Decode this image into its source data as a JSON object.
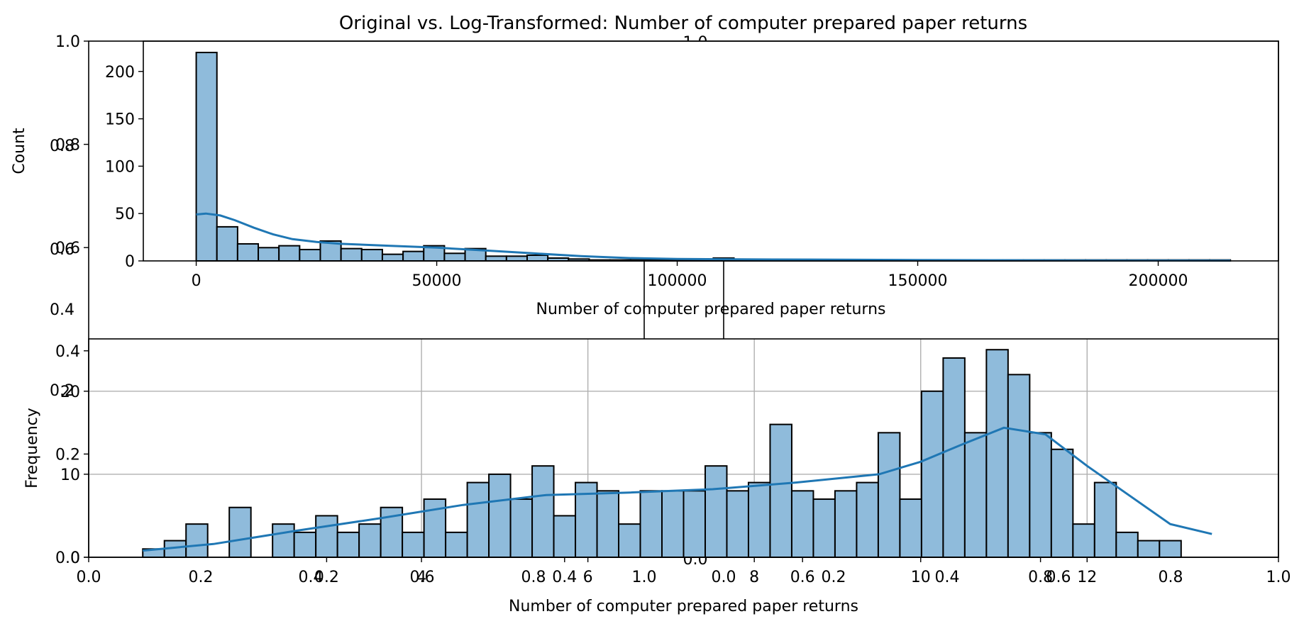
{
  "title": "Original vs. Log-Transformed: Number of computer prepared paper returns",
  "colors": {
    "bar_fill": "#8fbbdb",
    "bar_edge": "#000000",
    "kde": "#1f77b4",
    "grid": "#b0b0b0"
  },
  "ghost_axis": {
    "x_ticks": [
      "0.0",
      "0.2",
      "0.4",
      "0.6",
      "0.8",
      "1.0"
    ],
    "y_ticks": [
      "0.0",
      "0.2",
      "0.4",
      "0.6",
      "0.8",
      "1.0"
    ],
    "x_ticks_inner": [
      "0.0",
      "0.2",
      "0.4",
      "0.6",
      "0.8",
      "1.0"
    ],
    "y_ticks_inner": [
      "0.0",
      "0.2",
      "0.4",
      "0.6",
      "0.8",
      "1.0"
    ]
  },
  "chart_data": [
    {
      "type": "bar",
      "xlabel": "Number of computer prepared paper returns",
      "ylabel": "Count",
      "xlim": [
        -11000,
        225000
      ],
      "ylim": [
        0,
        232
      ],
      "x_ticks": [
        0,
        50000,
        100000,
        150000,
        200000
      ],
      "y_ticks": [
        0,
        50,
        100,
        150,
        200
      ],
      "bin_start": 0,
      "bin_width": 4300,
      "values": [
        220,
        36,
        18,
        14,
        16,
        12,
        21,
        13,
        12,
        7,
        10,
        16,
        8,
        13,
        5,
        5,
        6,
        3,
        2,
        1,
        1,
        1,
        1,
        1,
        1,
        3,
        1,
        1,
        1,
        1,
        1,
        1,
        1,
        1,
        1,
        1,
        1,
        1,
        1,
        1,
        1,
        1,
        1,
        1,
        1,
        1,
        1,
        1,
        1,
        1
      ],
      "kde": {
        "x": [
          0,
          2000,
          5000,
          8000,
          12000,
          16000,
          20000,
          25000,
          30000,
          40000,
          50000,
          60000,
          70000,
          80000,
          90000,
          100000,
          120000,
          150000,
          180000,
          215000
        ],
        "y": [
          49,
          50,
          48,
          43,
          35,
          28,
          23,
          20,
          18,
          16,
          14,
          11,
          8,
          5,
          3,
          2,
          1.5,
          1,
          0.5,
          0.3
        ]
      }
    },
    {
      "type": "bar",
      "xlabel": "Number of computer prepared paper returns",
      "ylabel": "Frequency",
      "xlim": [
        0,
        14.3
      ],
      "ylim": [
        0,
        26.3
      ],
      "x_ticks": [
        4,
        6,
        8,
        10,
        12
      ],
      "y_ticks": [
        0,
        10,
        20
      ],
      "grid": true,
      "bin_start": 0.65,
      "bin_width": 0.26,
      "values": [
        1,
        2,
        4,
        0,
        6,
        0,
        4,
        3,
        5,
        3,
        4,
        6,
        3,
        7,
        3,
        9,
        10,
        7,
        11,
        5,
        9,
        8,
        4,
        8,
        8,
        8,
        11,
        8,
        9,
        16,
        8,
        7,
        8,
        9,
        15,
        7,
        20,
        24,
        15,
        25,
        22,
        15,
        13,
        4,
        9,
        3,
        2,
        2
      ],
      "kde": {
        "x": [
          0.65,
          1.5,
          2.5,
          3.5,
          4.5,
          5.5,
          6.5,
          7.5,
          8.5,
          9.5,
          10.0,
          10.5,
          11.0,
          11.5,
          12.0,
          12.5,
          13.0,
          13.5
        ],
        "y": [
          0.8,
          1.6,
          3.2,
          4.7,
          6.3,
          7.5,
          7.8,
          8.2,
          9.0,
          10.0,
          11.5,
          13.6,
          15.6,
          14.8,
          11.0,
          7.5,
          4.0,
          2.8
        ]
      }
    }
  ]
}
